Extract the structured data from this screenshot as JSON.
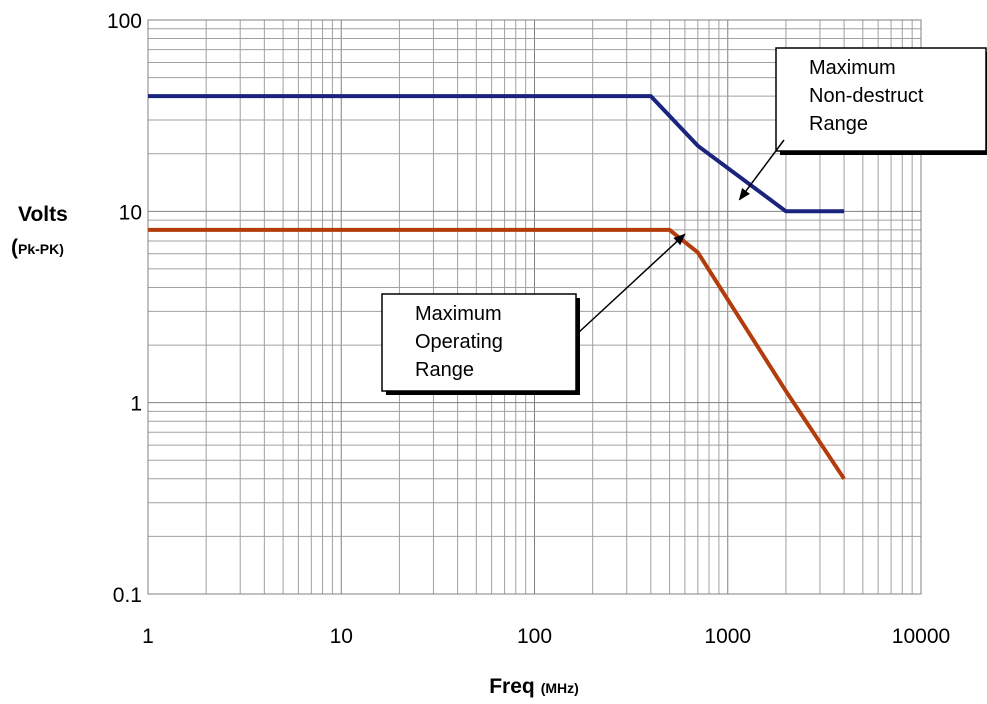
{
  "chart_data": {
    "type": "line",
    "x_scale": "log",
    "y_scale": "log",
    "xlim": [
      1,
      10000
    ],
    "ylim": [
      0.1,
      100
    ],
    "x_ticks": [
      "1",
      "10",
      "100",
      "1000",
      "10000"
    ],
    "y_ticks": [
      "100",
      "10",
      "1",
      "0.1"
    ],
    "xlabel": {
      "main": "Freq",
      "unit": "(MHz)"
    },
    "ylabel": {
      "main": "Volts",
      "open": "(",
      "unit": "Pk-PK)"
    },
    "grid": "major and minor",
    "legend": "none",
    "series": [
      {
        "color": "#1a237e",
        "x": [
          1,
          400,
          700,
          2000,
          4000
        ],
        "y": [
          40,
          40,
          22,
          10,
          10
        ]
      },
      {
        "color": "#b23c0c",
        "x": [
          1,
          500,
          700,
          2000,
          4000
        ],
        "y": [
          8,
          8,
          6.1,
          1.15,
          0.4
        ]
      }
    ],
    "annotations": [
      {
        "lines": [
          "Maximum",
          "Non-destruct",
          "Range"
        ],
        "arrow_to": [
          1150,
          11.5
        ]
      },
      {
        "lines": [
          "Maximum",
          "Operating",
          "Range"
        ],
        "arrow_to": [
          600,
          7.6
        ]
      }
    ]
  }
}
